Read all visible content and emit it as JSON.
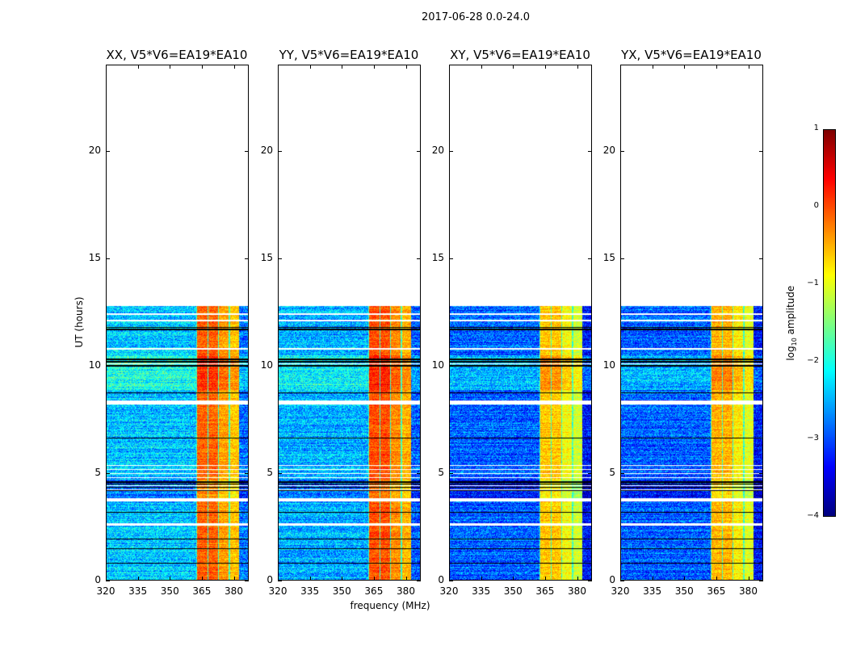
{
  "chart_data": {
    "type": "heatmap",
    "title": "2017-06-28 0.0-24.0",
    "xlabel": "frequency (MHz)",
    "ylabel": "UT (hours)",
    "xlim": [
      320,
      387
    ],
    "ylim": [
      0,
      24
    ],
    "xticks": [
      "320",
      "335",
      "350",
      "365",
      "380"
    ],
    "xtick_values": [
      320,
      335,
      350,
      365,
      380
    ],
    "yticks": [
      "0",
      "5",
      "10",
      "15",
      "20"
    ],
    "ytick_values": [
      0,
      5,
      10,
      15,
      20
    ],
    "data_time_range": [
      0,
      12.8
    ],
    "rfi_band_mhz": [
      362,
      382
    ],
    "sub_bands_mhz": [
      [
        362.3,
        367.2
      ],
      [
        367.5,
        372.0
      ],
      [
        372.4,
        377.0
      ],
      [
        377.6,
        382.0
      ]
    ],
    "flagged_black_hours": [
      0.83,
      1.5,
      1.95,
      3.2,
      4.2,
      4.35,
      4.5,
      4.6,
      6.65,
      8.75,
      10.0,
      10.2,
      10.3,
      11.7,
      11.8
    ],
    "flagged_white_hours": [
      2.6,
      2.65,
      3.75,
      3.8,
      8.25,
      8.3,
      8.35,
      10.8,
      12.1,
      12.4
    ],
    "panels": [
      {
        "title": "XX, V5*V6=EA19*EA10",
        "background_log10": -2.4,
        "band_log10": -0.1
      },
      {
        "title": "YY, V5*V6=EA19*EA10",
        "background_log10": -2.5,
        "band_log10": 0.0
      },
      {
        "title": "XY, V5*V6=EA19*EA10",
        "background_log10": -2.9,
        "band_log10": -0.6
      },
      {
        "title": "YX, V5*V6=EA19*EA10",
        "background_log10": -2.9,
        "band_log10": -0.5
      }
    ],
    "colorbar": {
      "label": "log10 amplitude",
      "label_main": "log",
      "label_sub": "10",
      "label_rest": " amplitude",
      "range": [
        -4,
        1
      ],
      "ticks": [
        "1",
        "0",
        "−1",
        "−2",
        "−3",
        "−4"
      ],
      "tick_values": [
        1,
        0,
        -1,
        -2,
        -3,
        -4
      ],
      "colormap": "jet"
    }
  }
}
